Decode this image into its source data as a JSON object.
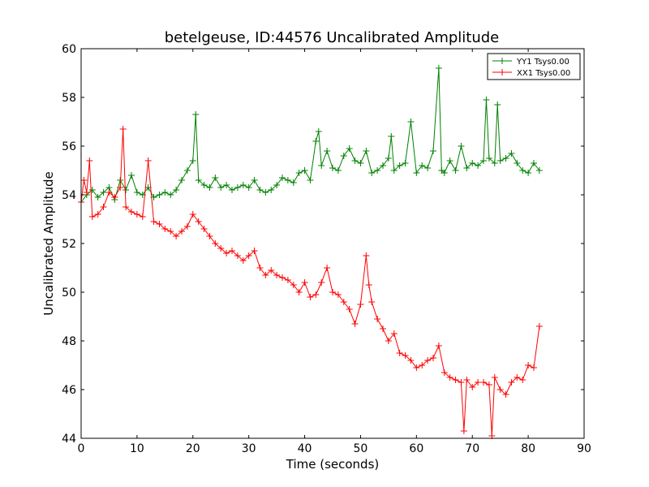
{
  "chart_data": {
    "type": "line",
    "title": "betelgeuse, ID:44576 Uncalibrated Amplitude",
    "xlabel": "Time (seconds)",
    "ylabel": "Uncalibrated Amplitude",
    "xlim": [
      0,
      90
    ],
    "ylim": [
      44,
      60
    ],
    "xticks": [
      "0",
      "10",
      "20",
      "30",
      "40",
      "50",
      "60",
      "70",
      "80",
      "90"
    ],
    "yticks": [
      "44",
      "46",
      "48",
      "50",
      "52",
      "54",
      "56",
      "58",
      "60"
    ],
    "grid": false,
    "legend_position": "top-right",
    "marker": "+",
    "series": [
      {
        "name": "YY1 Tsys0.00",
        "color": "#008000",
        "x": [
          0,
          1,
          2,
          3,
          4,
          5,
          6,
          7,
          8,
          9,
          10,
          11,
          12,
          13,
          14,
          15,
          16,
          17,
          18,
          19,
          20,
          20.5,
          21,
          22,
          23,
          24,
          25,
          26,
          27,
          28,
          29,
          30,
          31,
          32,
          33,
          34,
          35,
          36,
          37,
          38,
          39,
          40,
          41,
          42,
          42.5,
          43,
          44,
          45,
          46,
          47,
          48,
          49,
          50,
          51,
          52,
          53,
          54,
          55,
          55.5,
          56,
          57,
          58,
          59,
          60,
          61,
          62,
          63,
          64,
          64.5,
          65,
          66,
          67,
          68,
          69,
          70,
          71,
          72,
          72.5,
          73,
          74,
          74.5,
          75,
          76,
          77,
          78,
          79,
          80,
          81,
          82
        ],
        "values": [
          53.7,
          54.0,
          54.2,
          53.9,
          54.1,
          54.3,
          53.8,
          54.6,
          54.2,
          54.8,
          54.1,
          54.0,
          54.3,
          53.9,
          54.0,
          54.1,
          54.0,
          54.2,
          54.6,
          55.0,
          55.4,
          57.3,
          54.6,
          54.4,
          54.3,
          54.7,
          54.3,
          54.4,
          54.2,
          54.3,
          54.4,
          54.3,
          54.6,
          54.2,
          54.1,
          54.2,
          54.4,
          54.7,
          54.6,
          54.5,
          54.9,
          55.0,
          54.6,
          56.2,
          56.6,
          55.2,
          55.8,
          55.1,
          55.0,
          55.6,
          55.9,
          55.4,
          55.3,
          55.8,
          54.9,
          55.0,
          55.2,
          55.5,
          56.4,
          55.0,
          55.2,
          55.3,
          57.0,
          54.9,
          55.2,
          55.1,
          55.8,
          59.2,
          55.0,
          54.9,
          55.4,
          55.0,
          56.0,
          55.1,
          55.3,
          55.2,
          55.4,
          57.9,
          55.5,
          55.3,
          57.7,
          55.4,
          55.5,
          55.7,
          55.3,
          55.0,
          54.9,
          55.3,
          55.0
        ]
      },
      {
        "name": "XX1 Tsys0.00",
        "color": "#ff0000",
        "x": [
          0,
          0.5,
          1,
          1.5,
          2,
          3,
          4,
          5,
          6,
          7,
          7.5,
          8,
          9,
          10,
          11,
          12,
          13,
          14,
          15,
          16,
          17,
          18,
          19,
          20,
          21,
          22,
          23,
          24,
          25,
          26,
          27,
          28,
          29,
          30,
          31,
          32,
          33,
          34,
          35,
          36,
          37,
          38,
          39,
          40,
          41,
          42,
          43,
          44,
          45,
          46,
          47,
          48,
          49,
          50,
          51,
          51.5,
          52,
          53,
          54,
          55,
          56,
          57,
          58,
          59,
          60,
          61,
          62,
          63,
          64,
          65,
          66,
          67,
          68,
          68.5,
          69,
          70,
          71,
          72,
          73,
          73.5,
          74,
          75,
          76,
          77,
          78,
          79,
          80,
          81,
          82
        ],
        "values": [
          53.7,
          54.6,
          54.1,
          55.4,
          53.1,
          53.2,
          53.5,
          54.1,
          53.9,
          54.3,
          56.7,
          53.5,
          53.3,
          53.2,
          53.1,
          55.4,
          52.9,
          52.8,
          52.6,
          52.5,
          52.3,
          52.5,
          52.7,
          53.2,
          52.9,
          52.6,
          52.3,
          52.0,
          51.8,
          51.6,
          51.7,
          51.5,
          51.3,
          51.5,
          51.7,
          51.0,
          50.7,
          50.9,
          50.7,
          50.6,
          50.5,
          50.3,
          50.0,
          50.4,
          49.8,
          49.9,
          50.4,
          51.0,
          50.0,
          49.9,
          49.6,
          49.3,
          48.7,
          49.5,
          51.5,
          50.3,
          49.6,
          48.9,
          48.5,
          48.0,
          48.3,
          47.5,
          47.4,
          47.2,
          46.9,
          47.0,
          47.2,
          47.3,
          47.8,
          46.7,
          46.5,
          46.4,
          46.3,
          44.3,
          46.4,
          46.1,
          46.3,
          46.3,
          46.2,
          44.1,
          46.5,
          46.0,
          45.8,
          46.3,
          46.5,
          46.4,
          47.0,
          46.9,
          48.6
        ]
      }
    ]
  }
}
